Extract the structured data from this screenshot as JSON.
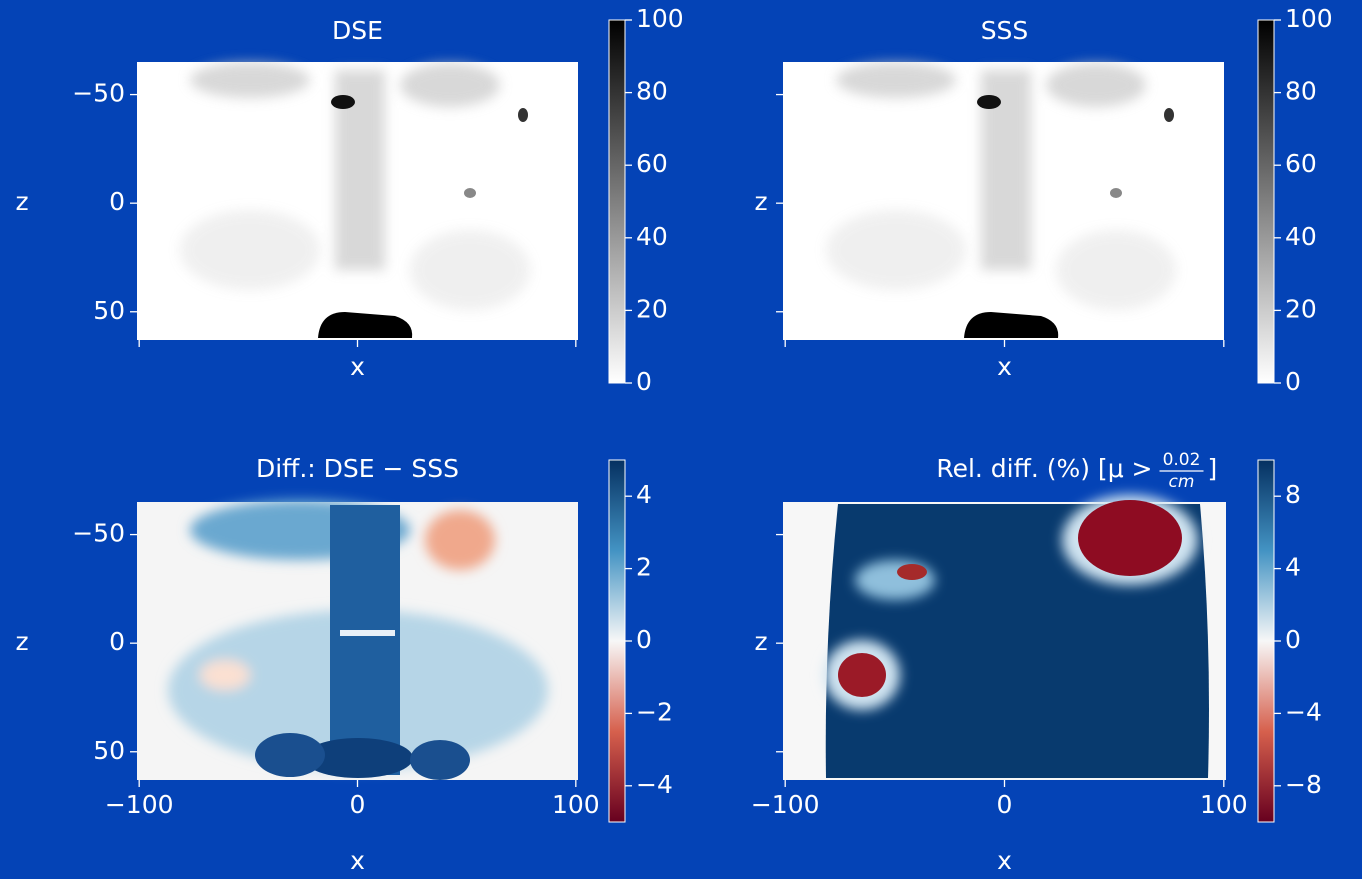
{
  "chart_data": [
    {
      "type": "heatmap",
      "title": "DSE",
      "xlabel": "x",
      "ylabel": "z",
      "xlim": [
        -101,
        101
      ],
      "ylim": [
        63,
        -65
      ],
      "xticks": [
        -100,
        0,
        100
      ],
      "yticks": [
        {
          "value": -50,
          "label": "−50"
        },
        0,
        50
      ],
      "xtick_labels": false,
      "ytick_labels": true,
      "clim": [
        0,
        100
      ],
      "cticks": [
        0,
        20,
        40,
        60,
        80,
        100
      ],
      "colormap": [
        "#ffffff",
        "#000000"
      ]
    },
    {
      "type": "heatmap",
      "title": "SSS",
      "xlabel": "x",
      "ylabel": "z",
      "xlim": [
        -101,
        101
      ],
      "ylim": [
        63,
        -65
      ],
      "xticks": [
        -100,
        0,
        100
      ],
      "yticks": [
        -50,
        0,
        50
      ],
      "xtick_labels": false,
      "ytick_labels": false,
      "clim": [
        0,
        100
      ],
      "cticks": [
        0,
        20,
        40,
        60,
        80,
        100
      ],
      "colormap": [
        "#ffffff",
        "#000000"
      ]
    },
    {
      "type": "heatmap",
      "title": "Diff.: DSE − SSS",
      "xlabel": "x",
      "ylabel": "z",
      "xlim": [
        -101,
        101
      ],
      "ylim": [
        63,
        -65
      ],
      "xticks": [
        {
          "value": -100,
          "label": "−100"
        },
        0,
        100
      ],
      "yticks": [
        {
          "value": -50,
          "label": "−50"
        },
        0,
        50
      ],
      "xtick_labels": true,
      "ytick_labels": true,
      "clim": [
        -5,
        5
      ],
      "cticks": [
        {
          "value": -4,
          "label": "−4"
        },
        {
          "value": -2,
          "label": "−2"
        },
        0,
        2,
        4
      ],
      "colormap": [
        "#67001f",
        "#d6604d",
        "#f7f7f7",
        "#4393c3",
        "#053061"
      ]
    },
    {
      "type": "heatmap",
      "title": "Rel. diff. (%) [μ >",
      "title_fraction": [
        "0.02",
        "cm"
      ],
      "title_end": "]",
      "xlabel": "x",
      "ylabel": "z",
      "xlim": [
        -101,
        101
      ],
      "ylim": [
        63,
        -65
      ],
      "xticks": [
        {
          "value": -100,
          "label": "−100"
        },
        0,
        100
      ],
      "yticks": [
        -50,
        0,
        50
      ],
      "xtick_labels": true,
      "ytick_labels": false,
      "clim": [
        -10,
        10
      ],
      "cticks": [
        {
          "value": -8,
          "label": "−8"
        },
        {
          "value": -4,
          "label": "−4"
        },
        0,
        4,
        8
      ],
      "colormap": [
        "#67001f",
        "#d6604d",
        "#f7f7f7",
        "#4393c3",
        "#053061"
      ]
    }
  ]
}
